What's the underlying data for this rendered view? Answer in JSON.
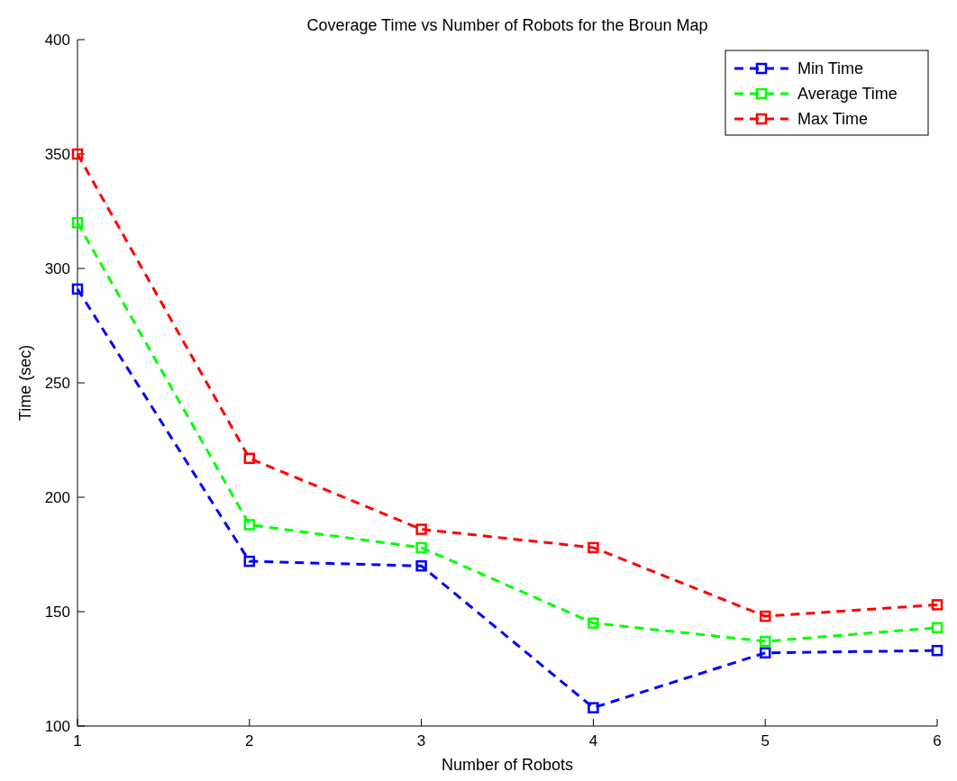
{
  "chart_data": {
    "type": "line",
    "title": "Coverage Time vs Number of Robots for the Broun Map",
    "xlabel": "Number of Robots",
    "ylabel": "Time (sec)",
    "x": [
      1,
      2,
      3,
      4,
      5,
      6
    ],
    "xlim": [
      1,
      6
    ],
    "xticks": [
      1,
      2,
      3,
      4,
      5,
      6
    ],
    "ylim": [
      100,
      400
    ],
    "yticks": [
      100,
      150,
      200,
      250,
      300,
      350,
      400
    ],
    "series": [
      {
        "name": "Min Time",
        "color": "#0000ff",
        "values": [
          291,
          172,
          170,
          108,
          132,
          133
        ]
      },
      {
        "name": "Average Time",
        "color": "#00ff00",
        "values": [
          320,
          188,
          178,
          145,
          137,
          143
        ]
      },
      {
        "name": "Max Time",
        "color": "#ff0000",
        "values": [
          350,
          217,
          186,
          178,
          148,
          153
        ]
      }
    ],
    "marker": "square",
    "line_style": "dashed",
    "legend": "top right",
    "grid": false
  }
}
